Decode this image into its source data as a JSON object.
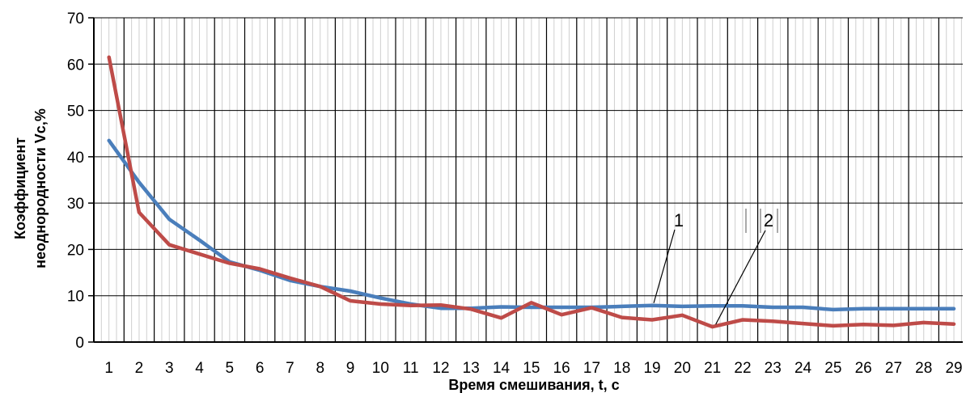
{
  "chart_data": {
    "type": "line",
    "title": "",
    "xlabel": "Время смешивания, t, с",
    "ylabel": "Коэффициент неоднородности Vc,%",
    "ylabel_lines": [
      "Коэффициент",
      "неоднородности  Vc,%"
    ],
    "xlim": [
      1,
      29
    ],
    "ylim": [
      0,
      70
    ],
    "yticks": [
      0,
      10,
      20,
      30,
      40,
      50,
      60,
      70
    ],
    "x": [
      1,
      2,
      3,
      4,
      5,
      6,
      7,
      8,
      9,
      10,
      11,
      12,
      13,
      14,
      15,
      16,
      17,
      18,
      19,
      20,
      21,
      22,
      23,
      24,
      25,
      26,
      27,
      28,
      29
    ],
    "grid": true,
    "legend": "none",
    "series": [
      {
        "name": "",
        "label": "1",
        "color": "#4a7ebb",
        "values": [
          43.5,
          34.5,
          26.5,
          22,
          17.3,
          15.5,
          13.3,
          12,
          11,
          9.5,
          8.2,
          7.3,
          7.3,
          7.6,
          7.5,
          7.5,
          7.5,
          7.7,
          7.9,
          7.7,
          7.8,
          7.8,
          7.5,
          7.5,
          7.0,
          7.2,
          7.2,
          7.2,
          7.2
        ]
      },
      {
        "name": "",
        "label": "2",
        "color": "#be4b48",
        "values": [
          61.5,
          28,
          21,
          19,
          17,
          15.8,
          13.8,
          12,
          8.9,
          8.2,
          7.9,
          8.0,
          7.1,
          5.2,
          8.5,
          5.9,
          7.4,
          5.3,
          4.8,
          5.8,
          3.3,
          4.8,
          4.5,
          4.0,
          3.5,
          3.8,
          3.6,
          4.2,
          3.9
        ]
      }
    ],
    "annotations": [
      {
        "text": "1",
        "series": 0,
        "at_x": 19
      },
      {
        "text": "2",
        "series": 1,
        "at_x": 21
      }
    ]
  }
}
